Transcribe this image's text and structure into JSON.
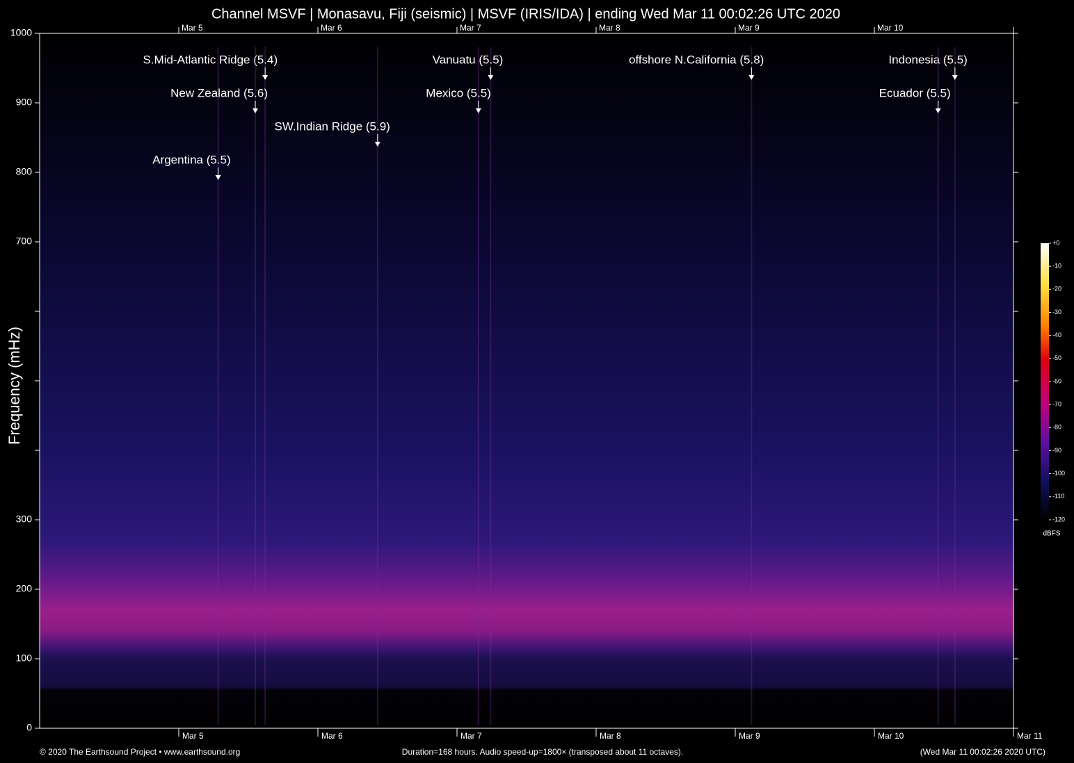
{
  "chart_data": {
    "type": "spectrogram",
    "title": "Channel MSVF | Monasavu, Fiji (seismic) | MSVF (IRIS/IDA) | ending Wed Mar 11 00:02:26 UTC 2020",
    "ylabel": "Frequency (mHz)",
    "xlim": [
      0,
      168
    ],
    "xticks": [
      {
        "value": 24,
        "label": "Mar 5"
      },
      {
        "value": 48,
        "label": "Mar 6"
      },
      {
        "value": 72,
        "label": "Mar 7"
      },
      {
        "value": 96,
        "label": "Mar 8"
      },
      {
        "value": 120,
        "label": "Mar 9"
      },
      {
        "value": 144,
        "label": "Mar 10"
      },
      {
        "value": 168,
        "label": "Mar 11"
      }
    ],
    "ylim": [
      0,
      1000
    ],
    "yticks": [
      0,
      100,
      200,
      300,
      700,
      800,
      900,
      1000
    ],
    "yminor_ticks": [
      400,
      500,
      600
    ],
    "annotations": [
      {
        "text": "S.Mid-Atlantic Ridge (5.4)",
        "x": 38.9,
        "y": 933
      },
      {
        "text": "New Zealand (5.6)",
        "x": 37.2,
        "y": 885
      },
      {
        "text": "SW.Indian Ridge (5.9)",
        "x": 58.3,
        "y": 837
      },
      {
        "text": "Argentina (5.5)",
        "x": 30.8,
        "y": 789
      },
      {
        "text": "Vanuatu (5.5)",
        "x": 77.8,
        "y": 933
      },
      {
        "text": "Mexico (5.5)",
        "x": 75.7,
        "y": 885
      },
      {
        "text": "offshore N.California (5.8)",
        "x": 122.8,
        "y": 933
      },
      {
        "text": "Indonesia (5.5)",
        "x": 157.9,
        "y": 933
      },
      {
        "text": "Ecuador (5.5)",
        "x": 155.0,
        "y": 885
      }
    ],
    "colorbar": {
      "label": "dBFS",
      "lim": [
        -120,
        0
      ],
      "ticks": [
        {
          "value": 0,
          "label": "+0"
        },
        -10,
        -20,
        -30,
        -40,
        -50,
        -60,
        -70,
        -80,
        -90,
        -100,
        -110,
        -120
      ]
    },
    "footer": {
      "left": "© 2020 The Earthsound Project • www.earthsound.org",
      "center": "Duration=168 hours. Audio speed-up=1800× (transposed about 11 octaves).",
      "right": "(Wed Mar 11 00:02:26 2020 UTC)"
    }
  }
}
